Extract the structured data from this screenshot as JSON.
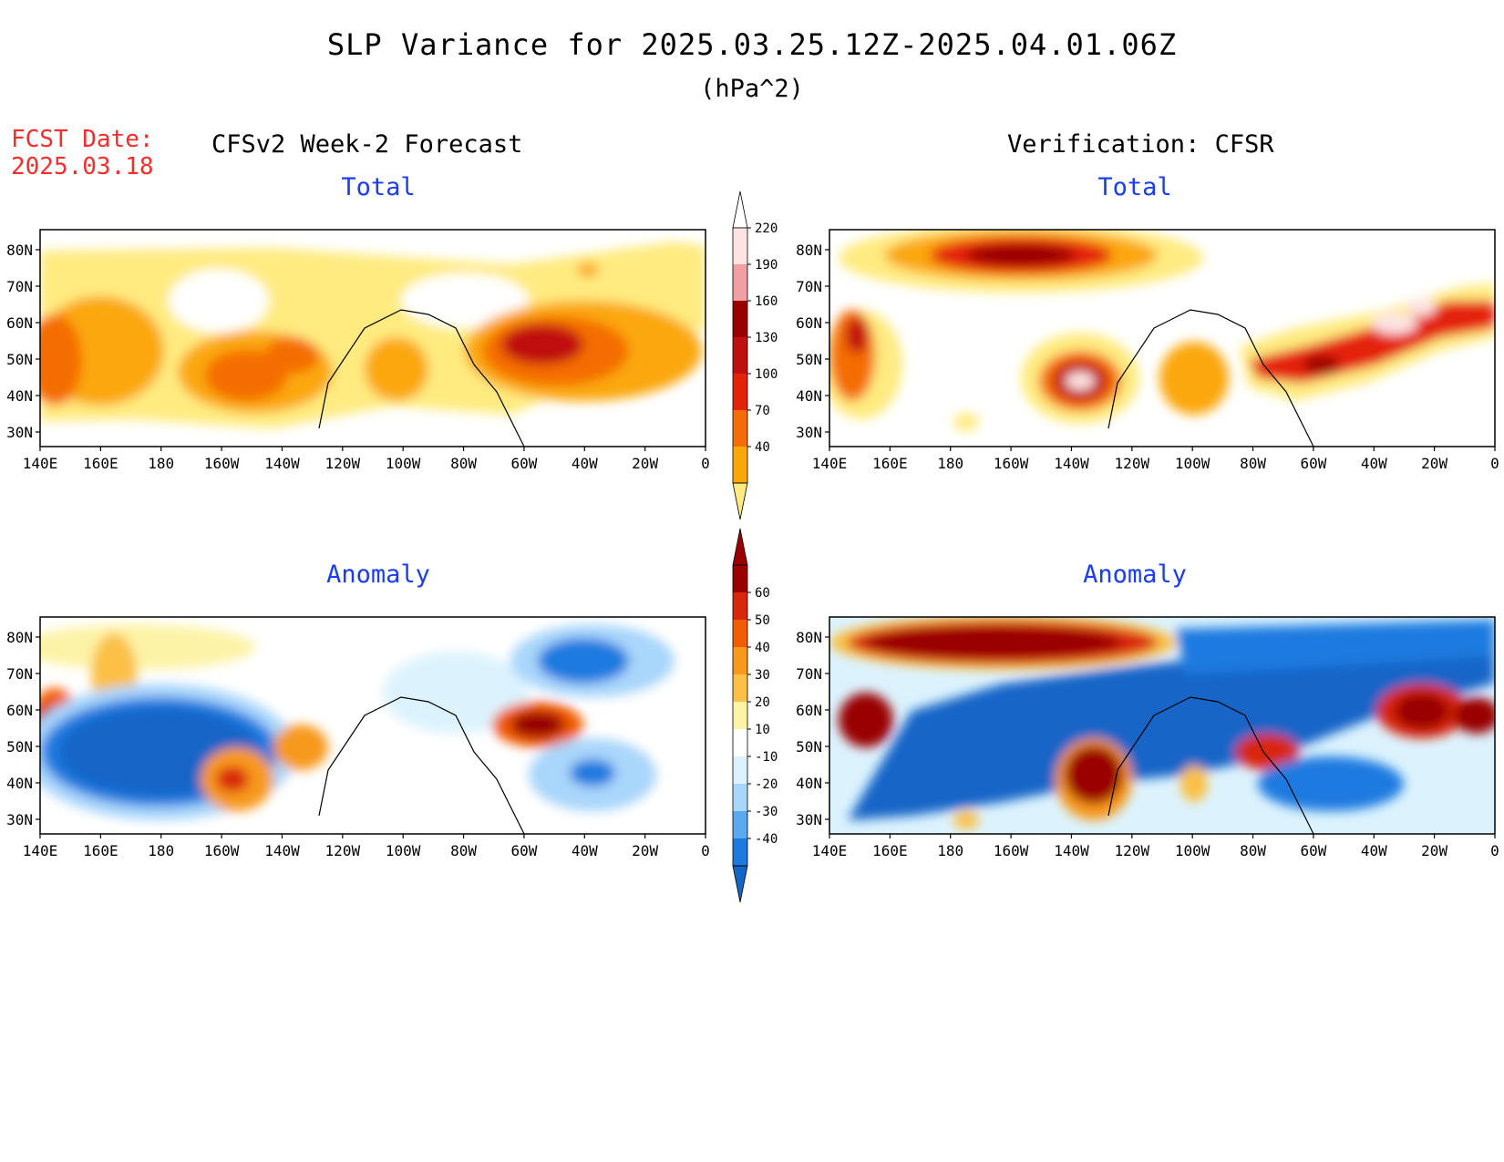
{
  "header": {
    "title": "SLP Variance for 2025.03.25.12Z-2025.04.01.06Z",
    "units": "(hPa^2)",
    "fcst_label": "FCST Date:",
    "fcst_date": "2025.03.18",
    "left_heading": "CFSv2 Week-2 Forecast",
    "right_heading": "Verification: CFSR"
  },
  "panels": {
    "forecast_total": {
      "subtitle": "Total"
    },
    "forecast_anomaly": {
      "subtitle": "Anomaly"
    },
    "verification_total": {
      "subtitle": "Total"
    },
    "verification_anomaly": {
      "subtitle": "Anomaly"
    }
  },
  "axes": {
    "lon_labels": [
      "140E",
      "160E",
      "180",
      "160W",
      "140W",
      "120W",
      "100W",
      "80W",
      "60W",
      "40W",
      "20W",
      "0"
    ],
    "lat_labels": [
      "80N",
      "70N",
      "60N",
      "50N",
      "40N",
      "30N"
    ]
  },
  "colorbars": {
    "total": {
      "levels": [
        "40",
        "70",
        "100",
        "130",
        "160",
        "190",
        "220"
      ],
      "colors": [
        "#ffeb80",
        "#fba70a",
        "#f46d06",
        "#e4240a",
        "#c00f0f",
        "#9a0000",
        "#f0a0a0",
        "#fde3e3"
      ]
    },
    "anomaly": {
      "levels": [
        "-40",
        "-30",
        "-20",
        "-10",
        "10",
        "20",
        "30",
        "40",
        "50",
        "60"
      ],
      "colors": [
        "#1565c7",
        "#1f7ae0",
        "#5aaaf0",
        "#a9d6fb",
        "#dcf3fe",
        "#ffffff",
        "#fdf3a6",
        "#fbc045",
        "#f7991a",
        "#f25c03",
        "#d8270c",
        "#9a0000"
      ]
    }
  }
}
